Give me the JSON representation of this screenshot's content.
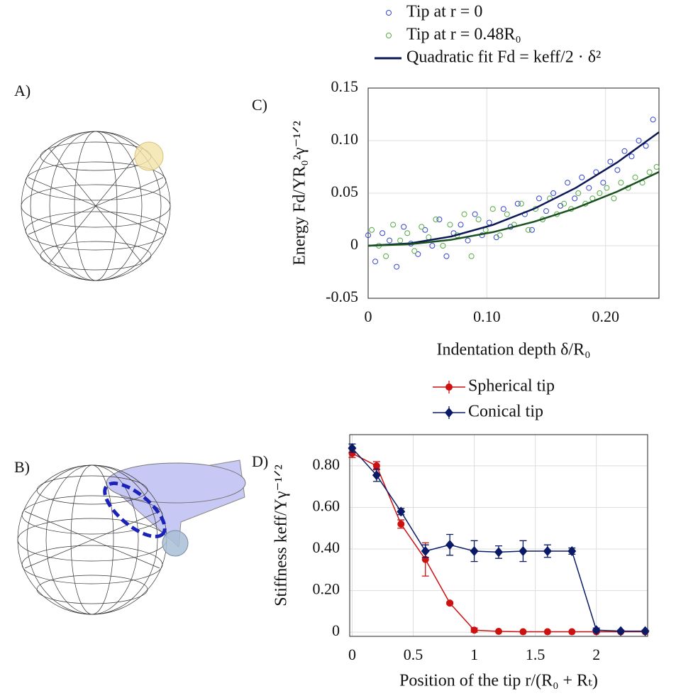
{
  "panel_labels": [
    "A)",
    "B)",
    "C)",
    "D)"
  ],
  "chart_data": [
    {
      "type": "scatter",
      "xlabel": "Indentation depth δ/R₀",
      "ylabel": "Energy Fd/YR₀²γ⁻¹ᐟ²",
      "xlim": [
        0,
        0.245
      ],
      "ylim": [
        -0.05,
        0.15
      ],
      "xticks": [
        0,
        {
          "value": 0.1,
          "label": "0.10"
        },
        {
          "value": 0.2,
          "label": "0.20"
        }
      ],
      "yticks": [
        -0.05,
        0,
        0.05,
        {
          "value": 0.1,
          "label": "0.10"
        },
        0.15
      ],
      "grid": true,
      "legend": "top",
      "series": [
        {
          "name": "Tip at r = 0",
          "kind": "scatter",
          "color": "#3344cc",
          "x": [
            0,
            0.006,
            0.012,
            0.018,
            0.024,
            0.03,
            0.036,
            0.042,
            0.048,
            0.054,
            0.06,
            0.066,
            0.072,
            0.078,
            0.084,
            0.09,
            0.096,
            0.102,
            0.108,
            0.114,
            0.12,
            0.126,
            0.132,
            0.138,
            0.144,
            0.15,
            0.156,
            0.162,
            0.168,
            0.174,
            0.18,
            0.186,
            0.192,
            0.198,
            0.204,
            0.21,
            0.216,
            0.222,
            0.228,
            0.234,
            0.24
          ],
          "values": [
            0.01,
            -0.015,
            0.012,
            0.005,
            -0.02,
            0.018,
            0.002,
            -0.008,
            0.015,
            0.0,
            0.025,
            -0.01,
            0.012,
            0.02,
            0.005,
            0.03,
            0.01,
            0.022,
            0.008,
            0.035,
            0.018,
            0.04,
            0.03,
            0.015,
            0.045,
            0.033,
            0.05,
            0.038,
            0.06,
            0.045,
            0.065,
            0.055,
            0.07,
            0.06,
            0.08,
            0.072,
            0.09,
            0.085,
            0.1,
            0.095,
            0.12
          ]
        },
        {
          "name": "Tip at r = 0.48R₀",
          "kind": "scatter",
          "color": "#55aa44",
          "x": [
            0.003,
            0.009,
            0.015,
            0.021,
            0.027,
            0.033,
            0.039,
            0.045,
            0.051,
            0.057,
            0.063,
            0.069,
            0.075,
            0.081,
            0.087,
            0.093,
            0.099,
            0.105,
            0.111,
            0.117,
            0.123,
            0.129,
            0.135,
            0.141,
            0.147,
            0.153,
            0.159,
            0.165,
            0.171,
            0.177,
            0.183,
            0.189,
            0.195,
            0.201,
            0.207,
            0.213,
            0.219,
            0.225,
            0.231,
            0.237,
            0.243
          ],
          "values": [
            0.015,
            0.0,
            -0.01,
            0.02,
            0.005,
            0.012,
            -0.005,
            0.018,
            0.008,
            0.025,
            0.0,
            0.02,
            0.01,
            0.03,
            -0.01,
            0.025,
            0.015,
            0.035,
            0.01,
            0.03,
            0.02,
            0.04,
            0.015,
            0.035,
            0.025,
            0.045,
            0.03,
            0.04,
            0.035,
            0.05,
            0.04,
            0.045,
            0.05,
            0.055,
            0.045,
            0.06,
            0.055,
            0.065,
            0.06,
            0.07,
            0.075
          ]
        },
        {
          "name": "Quadratic fit Fd = keff/2 · δ²",
          "kind": "line",
          "color": "#0b1757",
          "x": [
            0,
            0.035,
            0.07,
            0.105,
            0.14,
            0.175,
            0.21,
            0.245
          ],
          "values": [
            0,
            0.0022,
            0.0088,
            0.0198,
            0.0353,
            0.0551,
            0.0794,
            0.108
          ]
        },
        {
          "kind": "line",
          "color": "#18501e",
          "x": [
            0,
            0.035,
            0.07,
            0.105,
            0.14,
            0.175,
            0.21,
            0.245
          ],
          "values": [
            0,
            0.0014,
            0.0057,
            0.0129,
            0.0229,
            0.0358,
            0.0516,
            0.0702
          ]
        }
      ]
    },
    {
      "type": "errorline",
      "xlabel": "Position of the tip r/(R₀ + Rₜ)",
      "ylabel": "Stiffness keff/Yγ⁻¹ᐟ²",
      "xlim": [
        -0.02,
        2.42
      ],
      "ylim": [
        -0.02,
        0.95
      ],
      "xticks": [
        0,
        0.5,
        1,
        1.5,
        2
      ],
      "yticks": [
        0,
        {
          "value": 0.2,
          "label": "0.20"
        },
        {
          "value": 0.4,
          "label": "0.40"
        },
        {
          "value": 0.6,
          "label": "0.60"
        },
        {
          "value": 0.8,
          "label": "0.80"
        }
      ],
      "grid": true,
      "legend": "top",
      "series": [
        {
          "name": "Spherical tip",
          "color": "#cc1111",
          "marker": "circle",
          "x": [
            0,
            0.2,
            0.4,
            0.6,
            0.8,
            1,
            1.2,
            1.4,
            1.6,
            1.8,
            2,
            2.2,
            2.4
          ],
          "values": [
            0.86,
            0.8,
            0.52,
            0.35,
            0.14,
            0.01,
            0.004,
            0.002,
            0.002,
            0.002,
            0.002,
            0.002,
            0.002
          ],
          "errors": [
            0.02,
            0.02,
            0.02,
            0.08,
            0.005,
            0.01,
            0,
            0,
            0,
            0,
            0,
            0,
            0
          ]
        },
        {
          "name": "Conical tip",
          "color": "#0b1a66",
          "marker": "diamond",
          "x": [
            0,
            0.2,
            0.4,
            0.6,
            0.8,
            1,
            1.2,
            1.4,
            1.6,
            1.8,
            2,
            2.2,
            2.4
          ],
          "values": [
            0.885,
            0.755,
            0.58,
            0.39,
            0.42,
            0.39,
            0.385,
            0.39,
            0.39,
            0.39,
            0.01,
            0.005,
            0.005
          ],
          "errors": [
            0.02,
            0.03,
            0.015,
            0.03,
            0.05,
            0.05,
            0.03,
            0.05,
            0.03,
            0.015,
            0.01,
            0.005,
            0.005
          ]
        }
      ]
    }
  ]
}
